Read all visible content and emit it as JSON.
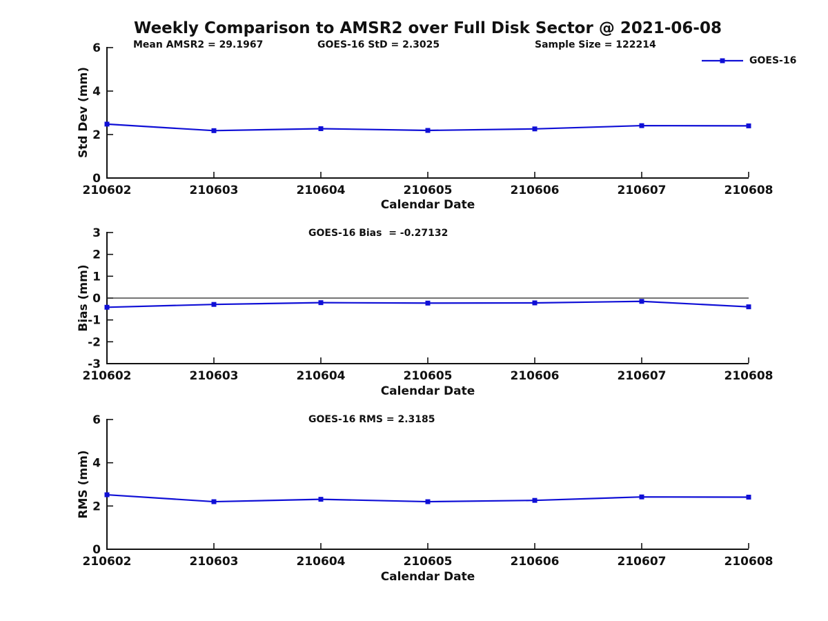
{
  "title": "Weekly Comparison to AMSR2 over Full Disk Sector @ 2021-06-08",
  "legend": {
    "label": "GOES-16",
    "line_color": "#0f0fd6"
  },
  "chart_data": [
    {
      "type": "line",
      "ylabel": "Std Dev (mm)",
      "xlabel": "Calendar Date",
      "annotations": [
        "Mean AMSR2 = 29.1967",
        "GOES-16 StD = 2.3025",
        "Sample Size = 122214"
      ],
      "categories": [
        "210602",
        "210603",
        "210604",
        "210605",
        "210606",
        "210607",
        "210608"
      ],
      "series": [
        {
          "name": "GOES-16",
          "color": "#0f0fd6",
          "marker": "square",
          "values": [
            2.48,
            2.18,
            2.27,
            2.19,
            2.26,
            2.41,
            2.4
          ]
        }
      ],
      "ylim": [
        0,
        6
      ],
      "yticks": [
        0,
        2,
        4,
        6
      ],
      "grid": false,
      "zero_line": false,
      "legend_position": "top-right-outside"
    },
    {
      "type": "line",
      "ylabel": "Bias (mm)",
      "xlabel": "Calendar Date",
      "annotations": [
        "GOES-16 Bias  = -0.27132"
      ],
      "categories": [
        "210602",
        "210603",
        "210604",
        "210605",
        "210606",
        "210607",
        "210608"
      ],
      "series": [
        {
          "name": "GOES-16",
          "color": "#0f0fd6",
          "marker": "square",
          "values": [
            -0.42,
            -0.29,
            -0.21,
            -0.23,
            -0.22,
            -0.15,
            -0.4
          ]
        }
      ],
      "ylim": [
        -3,
        3
      ],
      "yticks": [
        -3,
        -2,
        -1,
        0,
        1,
        2,
        3
      ],
      "grid": false,
      "zero_line": true,
      "legend_position": "none"
    },
    {
      "type": "line",
      "ylabel": "RMS (mm)",
      "xlabel": "Calendar Date",
      "annotations": [
        "GOES-16 RMS = 2.3185"
      ],
      "categories": [
        "210602",
        "210603",
        "210604",
        "210605",
        "210606",
        "210607",
        "210608"
      ],
      "series": [
        {
          "name": "GOES-16",
          "color": "#0f0fd6",
          "marker": "square",
          "values": [
            2.52,
            2.2,
            2.31,
            2.2,
            2.26,
            2.42,
            2.41
          ]
        }
      ],
      "ylim": [
        0,
        6
      ],
      "yticks": [
        0,
        2,
        4,
        6
      ],
      "grid": false,
      "zero_line": false,
      "legend_position": "none"
    }
  ]
}
